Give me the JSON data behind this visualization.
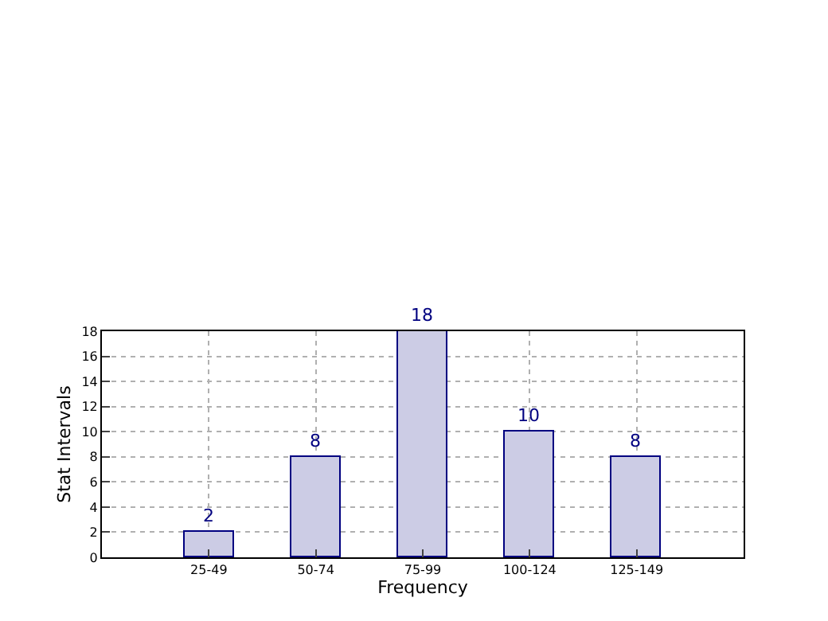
{
  "chart_data": {
    "type": "bar",
    "xlabel": "Frequency",
    "ylabel": "Stat Intervals",
    "categories": [
      "25-49",
      "50-74",
      "75-99",
      "100-124",
      "125-149"
    ],
    "values": [
      2,
      8,
      18,
      10,
      8
    ],
    "color": "#cccce5",
    "ylim": [
      0,
      18
    ],
    "yticks": [
      0,
      2,
      4,
      6,
      8,
      10,
      12,
      14,
      16,
      18
    ],
    "grid": true,
    "data_labels": true
  }
}
